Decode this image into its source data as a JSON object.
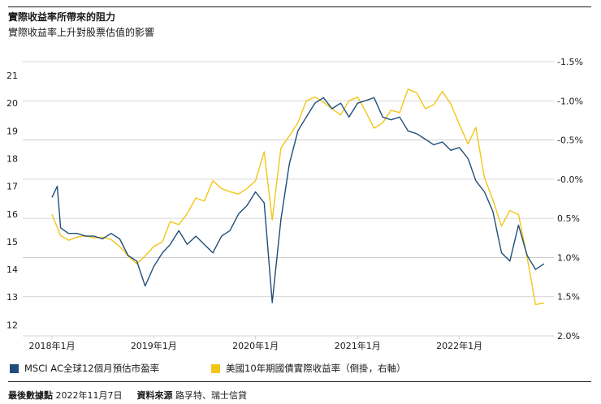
{
  "header": {
    "title": "實際收益率所帶來的阻力",
    "subtitle": "實際收益率上升對股票估值的影響"
  },
  "colors": {
    "pe": "#1f4e79",
    "yield": "#f2c617",
    "grid": "#c8c8c8",
    "text": "#1a1a1a"
  },
  "chart_data": {
    "type": "line",
    "title": "實際收益率所帶來的阻力",
    "subtitle": "實際收益率上升對股票估值的影響",
    "x_ticks": [
      "2018年1月",
      "2019年1月",
      "2020年1月",
      "2021年1月",
      "2022年1月"
    ],
    "x_range": [
      "2018-01",
      "2022-11"
    ],
    "y_left": {
      "ticks": [
        "21",
        "20",
        "19",
        "18",
        "17",
        "16",
        "15",
        "14",
        "13",
        "12"
      ],
      "lim": [
        11.6,
        21.5
      ]
    },
    "y_right": {
      "inverted": true,
      "ticks": [
        "-1.5%",
        "-1.0%",
        "-0.5%",
        "-0.0%",
        "0.5%",
        "1.0%",
        "1.5%",
        "2.0%"
      ],
      "lim": [
        -1.5,
        2.0
      ]
    },
    "grid": "horizontal",
    "series": [
      {
        "name": "MSCI AC全球12個月預估市盈率",
        "axis": "left",
        "color": "#1f4e79",
        "points": [
          [
            "2018-01",
            16.6
          ],
          [
            "2018-01-20",
            17.0
          ],
          [
            "2018-02",
            15.5
          ],
          [
            "2018-03",
            15.3
          ],
          [
            "2018-04",
            15.3
          ],
          [
            "2018-05",
            15.2
          ],
          [
            "2018-06",
            15.2
          ],
          [
            "2018-07",
            15.1
          ],
          [
            "2018-08",
            15.3
          ],
          [
            "2018-09",
            15.1
          ],
          [
            "2018-10",
            14.5
          ],
          [
            "2018-11",
            14.3
          ],
          [
            "2018-12",
            13.4
          ],
          [
            "2019-01",
            14.1
          ],
          [
            "2019-02",
            14.6
          ],
          [
            "2019-03",
            14.9
          ],
          [
            "2019-04",
            15.4
          ],
          [
            "2019-05",
            14.9
          ],
          [
            "2019-06",
            15.2
          ],
          [
            "2019-07",
            14.9
          ],
          [
            "2019-08",
            14.6
          ],
          [
            "2019-09",
            15.2
          ],
          [
            "2019-10",
            15.4
          ],
          [
            "2019-11",
            16.0
          ],
          [
            "2019-12",
            16.3
          ],
          [
            "2020-01",
            16.8
          ],
          [
            "2020-02",
            16.4
          ],
          [
            "2020-03",
            12.8
          ],
          [
            "2020-04",
            15.8
          ],
          [
            "2020-05",
            17.8
          ],
          [
            "2020-06",
            19.0
          ],
          [
            "2020-07",
            19.5
          ],
          [
            "2020-08",
            20.0
          ],
          [
            "2020-09",
            20.2
          ],
          [
            "2020-10",
            19.8
          ],
          [
            "2020-11",
            20.0
          ],
          [
            "2020-12",
            19.5
          ],
          [
            "2021-01",
            20.0
          ],
          [
            "2021-02",
            20.1
          ],
          [
            "2021-03",
            20.2
          ],
          [
            "2021-04",
            19.5
          ],
          [
            "2021-05",
            19.4
          ],
          [
            "2021-06",
            19.5
          ],
          [
            "2021-07",
            19.0
          ],
          [
            "2021-08",
            18.9
          ],
          [
            "2021-09",
            18.7
          ],
          [
            "2021-10",
            18.5
          ],
          [
            "2021-11",
            18.6
          ],
          [
            "2021-12",
            18.3
          ],
          [
            "2022-01",
            18.4
          ],
          [
            "2022-02",
            18.0
          ],
          [
            "2022-03",
            17.2
          ],
          [
            "2022-04",
            16.8
          ],
          [
            "2022-05",
            16.1
          ],
          [
            "2022-06",
            14.6
          ],
          [
            "2022-07",
            14.3
          ],
          [
            "2022-08",
            15.6
          ],
          [
            "2022-09",
            14.5
          ],
          [
            "2022-10",
            14.0
          ],
          [
            "2022-11",
            14.2
          ]
        ]
      },
      {
        "name": "美國10年期國債實際收益率（倒掛，右軸）",
        "axis": "right",
        "color": "#f2c617",
        "points": [
          [
            "2018-01",
            0.45
          ],
          [
            "2018-02",
            0.72
          ],
          [
            "2018-03",
            0.78
          ],
          [
            "2018-04",
            0.74
          ],
          [
            "2018-05",
            0.72
          ],
          [
            "2018-06",
            0.75
          ],
          [
            "2018-07",
            0.74
          ],
          [
            "2018-08",
            0.77
          ],
          [
            "2018-09",
            0.86
          ],
          [
            "2018-10",
            0.98
          ],
          [
            "2018-11",
            1.08
          ],
          [
            "2018-12",
            0.98
          ],
          [
            "2019-01",
            0.86
          ],
          [
            "2019-02",
            0.8
          ],
          [
            "2019-03",
            0.54
          ],
          [
            "2019-04",
            0.58
          ],
          [
            "2019-05",
            0.44
          ],
          [
            "2019-06",
            0.24
          ],
          [
            "2019-07",
            0.28
          ],
          [
            "2019-08",
            0.02
          ],
          [
            "2019-09",
            0.12
          ],
          [
            "2019-10",
            0.16
          ],
          [
            "2019-11",
            0.19
          ],
          [
            "2019-12",
            0.12
          ],
          [
            "2020-01",
            0.02
          ],
          [
            "2020-02",
            -0.35
          ],
          [
            "2020-03",
            0.52
          ],
          [
            "2020-04",
            -0.4
          ],
          [
            "2020-05",
            -0.55
          ],
          [
            "2020-06",
            -0.72
          ],
          [
            "2020-07",
            -1.0
          ],
          [
            "2020-08",
            -1.05
          ],
          [
            "2020-09",
            -0.98
          ],
          [
            "2020-10",
            -0.9
          ],
          [
            "2020-11",
            -0.82
          ],
          [
            "2020-12",
            -1.0
          ],
          [
            "2021-01",
            -1.05
          ],
          [
            "2021-02",
            -0.85
          ],
          [
            "2021-03",
            -0.65
          ],
          [
            "2021-04",
            -0.72
          ],
          [
            "2021-05",
            -0.88
          ],
          [
            "2021-06",
            -0.85
          ],
          [
            "2021-07",
            -1.15
          ],
          [
            "2021-08",
            -1.1
          ],
          [
            "2021-09",
            -0.9
          ],
          [
            "2021-10",
            -0.95
          ],
          [
            "2021-11",
            -1.12
          ],
          [
            "2021-12",
            -0.96
          ],
          [
            "2022-01",
            -0.7
          ],
          [
            "2022-02",
            -0.45
          ],
          [
            "2022-03",
            -0.66
          ],
          [
            "2022-04",
            -0.02
          ],
          [
            "2022-05",
            0.26
          ],
          [
            "2022-06",
            0.6
          ],
          [
            "2022-07",
            0.4
          ],
          [
            "2022-08",
            0.45
          ],
          [
            "2022-09",
            1.0
          ],
          [
            "2022-10",
            1.6
          ],
          [
            "2022-11",
            1.58
          ]
        ]
      }
    ]
  },
  "legend": [
    {
      "label": "MSCI AC全球12個月預估市盈率",
      "color": "#1f4e79"
    },
    {
      "label": "美國10年期國債實際收益率（倒掛，右軸）",
      "color": "#f2c617"
    }
  ],
  "footer": {
    "date_label": "最後數據點",
    "date_value": "2022年11月7日",
    "source_label": "資料來源",
    "source_value": "路孚特、瑞士信貸"
  }
}
